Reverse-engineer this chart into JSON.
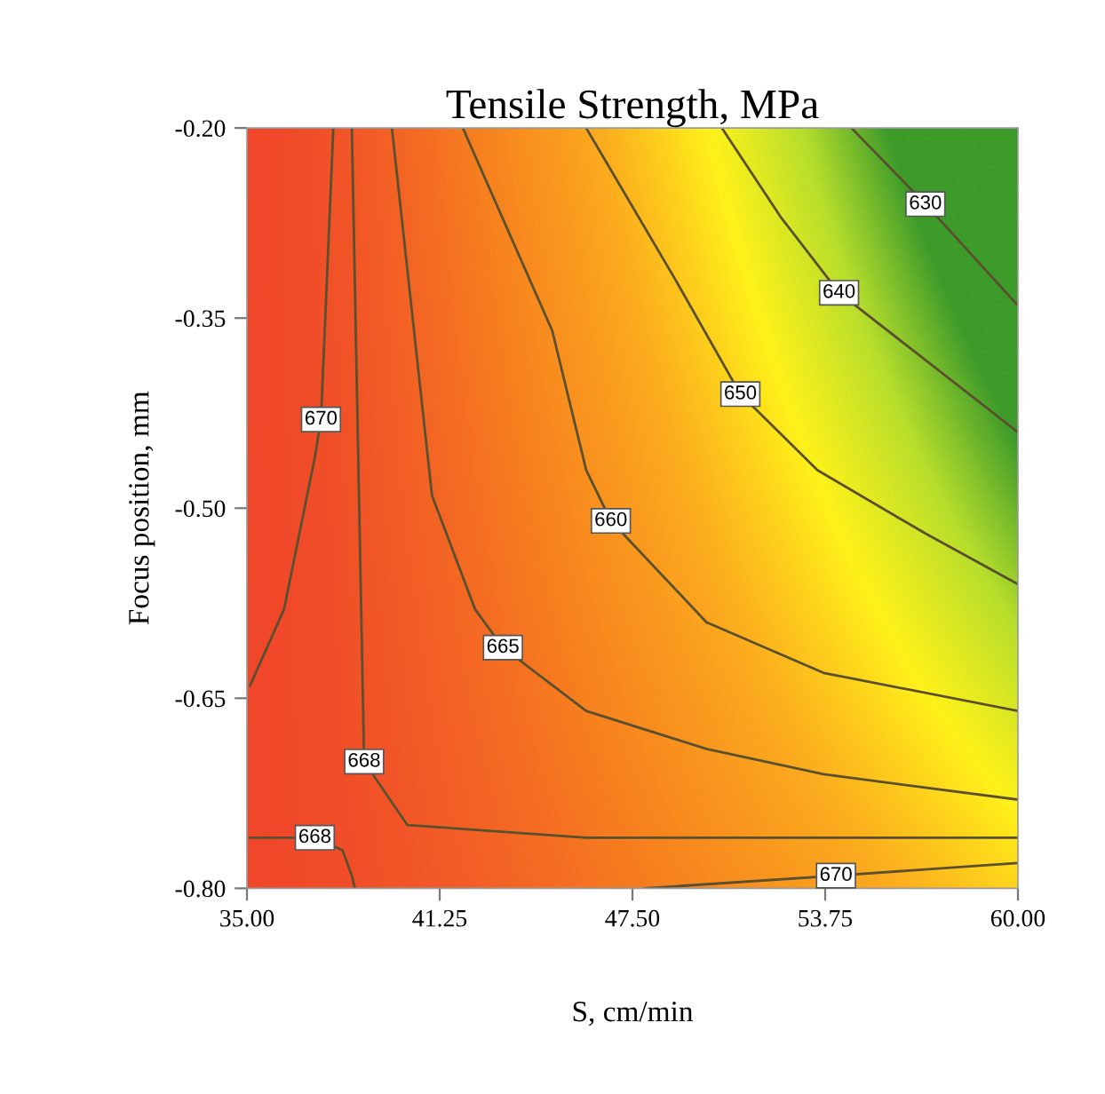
{
  "chart_data": {
    "type": "line",
    "title": "Tensile Strength, MPa",
    "xlabel": "S, cm/min",
    "ylabel": "Focus position, mm",
    "xlim": [
      35,
      60
    ],
    "ylim": [
      -0.8,
      -0.2
    ],
    "xticks": [
      {
        "value": 35,
        "label": "35.00"
      },
      {
        "value": 41.25,
        "label": "41.25"
      },
      {
        "value": 47.5,
        "label": "47.50"
      },
      {
        "value": 53.75,
        "label": "53.75"
      },
      {
        "value": 60,
        "label": "60.00"
      }
    ],
    "yticks": [
      {
        "value": -0.8,
        "label": "-0.80"
      },
      {
        "value": -0.65,
        "label": "-0.65"
      },
      {
        "value": -0.5,
        "label": "-0.50"
      },
      {
        "value": -0.35,
        "label": "-0.35"
      },
      {
        "value": -0.2,
        "label": "-0.20"
      }
    ],
    "grid": false,
    "legend": false,
    "marker": "none",
    "line_style": "solid",
    "series": [
      {
        "name": "630",
        "color": "#5a4f2e",
        "x": [
          54.6,
          57.0,
          60.0
        ],
        "values": [
          -0.2,
          -0.26,
          -0.34
        ]
      },
      {
        "name": "640",
        "color": "#5a4f2e",
        "x": [
          50.4,
          52.3,
          54.2,
          60.0
        ],
        "values": [
          -0.2,
          -0.27,
          -0.33,
          -0.44
        ]
      },
      {
        "name": "650",
        "color": "#5a4f2e",
        "x": [
          46.0,
          48.9,
          51.0,
          53.5,
          57.0,
          60.0
        ],
        "values": [
          -0.2,
          -0.32,
          -0.41,
          -0.47,
          -0.52,
          -0.56
        ]
      },
      {
        "name": "660",
        "color": "#5a4f2e",
        "x": [
          42.0,
          44.9,
          46.0,
          46.8,
          49.9,
          53.7,
          60.0
        ],
        "values": [
          -0.2,
          -0.36,
          -0.47,
          -0.51,
          -0.59,
          -0.63,
          -0.66
        ]
      },
      {
        "name": "665",
        "color": "#5a4f2e",
        "x": [
          39.7,
          41.0,
          42.4,
          43.3,
          46.0,
          49.9,
          53.7,
          60.0
        ],
        "values": [
          -0.2,
          -0.49,
          -0.58,
          -0.61,
          -0.66,
          -0.69,
          -0.71,
          -0.73
        ]
      },
      {
        "name": "668",
        "color": "#5a4f2e",
        "x": [
          38.4,
          38.8,
          40.2,
          46.0,
          60.0
        ],
        "values": [
          -0.2,
          -0.7,
          -0.75,
          -0.76,
          -0.76
        ]
      },
      {
        "name": "668",
        "color": "#5a4f2e",
        "x": [
          35.1,
          37.2,
          38.1,
          38.4,
          38.5
        ],
        "values": [
          -0.76,
          -0.76,
          -0.77,
          -0.79,
          -0.8
        ]
      },
      {
        "name": "670",
        "color": "#5a4f2e",
        "x": [
          37.8,
          37.4,
          37.2,
          36.2,
          35.1
        ],
        "values": [
          -0.2,
          -0.43,
          -0.46,
          -0.58,
          -0.64
        ]
      },
      {
        "name": "670",
        "color": "#5a4f2e",
        "x": [
          47.9,
          54.1,
          60.0
        ],
        "values": [
          -0.8,
          -0.79,
          -0.78
        ]
      }
    ]
  }
}
